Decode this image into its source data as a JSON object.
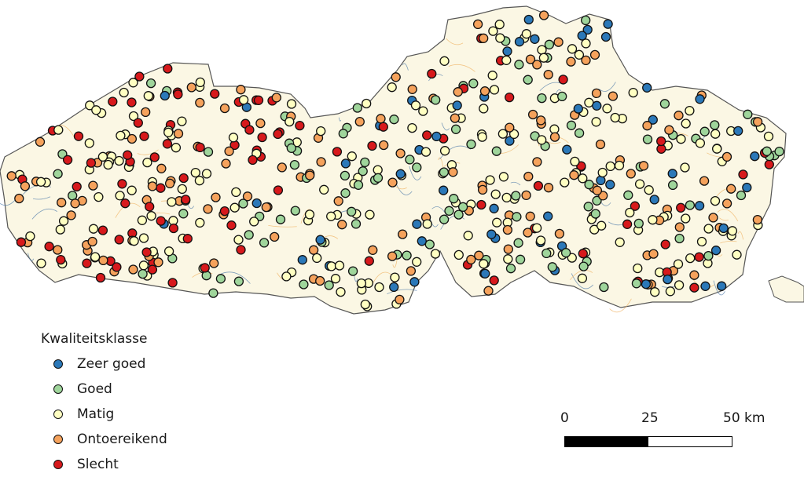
{
  "legend": {
    "title": "Kwaliteitsklasse",
    "classes": [
      {
        "label": "Zeer goed",
        "color": "#2b78b8"
      },
      {
        "label": "Goed",
        "color": "#9fd59b"
      },
      {
        "label": "Matig",
        "color": "#ffffc2"
      },
      {
        "label": "Ontoereikend",
        "color": "#f5a25c"
      },
      {
        "label": "Slecht",
        "color": "#d7191c"
      }
    ]
  },
  "scalebar": {
    "labels": [
      "0",
      "25",
      "50 km"
    ]
  },
  "map": {
    "region_fill": "#fbf7e4",
    "boundary_color": "#555555",
    "river_color": "#4a78a8"
  }
}
